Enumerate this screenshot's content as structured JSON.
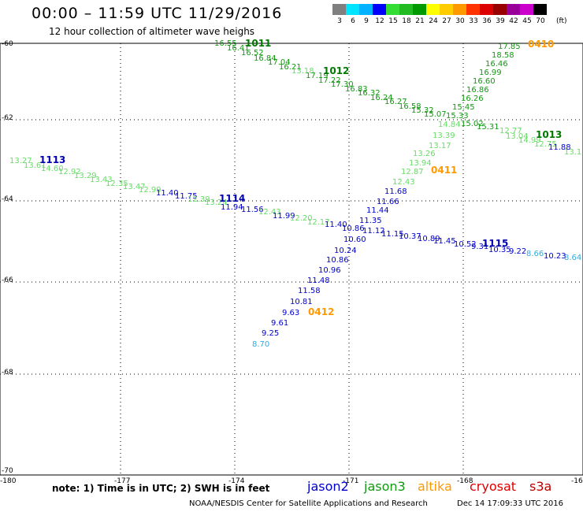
{
  "header": {
    "title": "00:00 – 11:59 UTC 11/29/2016",
    "subtitle": "12 hour collection of altimeter wave heighs"
  },
  "color_scale": {
    "colors": [
      "#7f7f7f",
      "#00e5ff",
      "#00b2ff",
      "#0000ff",
      "#33dd33",
      "#22bb22",
      "#009900",
      "#ffff00",
      "#ffcc00",
      "#ff9900",
      "#ff3300",
      "#dd0000",
      "#990000",
      "#990099",
      "#cc00cc",
      "#000000"
    ],
    "labels": [
      "3",
      "6",
      "9",
      "12",
      "15",
      "18",
      "21",
      "24",
      "27",
      "30",
      "33",
      "36",
      "39",
      "42",
      "45",
      "70"
    ],
    "unit": "(ft)"
  },
  "axes": {
    "y_labels": [
      "-60",
      "-62",
      "-64",
      "-66",
      "-68",
      "-70"
    ],
    "x_labels": [
      "-180",
      "-177",
      "-174",
      "-171",
      "-168",
      "-16"
    ]
  },
  "tracks": [
    {
      "id": "1011",
      "color": "#119911",
      "points": [
        [
          "16.55",
          272,
          58
        ],
        [
          "16.41",
          288,
          64
        ],
        [
          "16.52",
          306,
          70
        ],
        [
          "16.84",
          322,
          77
        ],
        [
          "17.04",
          340,
          82
        ],
        [
          "16.21",
          354,
          88
        ],
        [
          "13.18",
          370,
          93
        ],
        [
          "17.19",
          388,
          99
        ],
        [
          "17.22",
          404,
          105
        ],
        [
          "17.30",
          420,
          110
        ],
        [
          "16.83",
          438,
          116
        ],
        [
          "16.32",
          454,
          121
        ],
        [
          "16.24",
          470,
          127
        ],
        [
          "16.27",
          488,
          132
        ],
        [
          "16.58",
          506,
          138
        ],
        [
          "15.32",
          522,
          143
        ],
        [
          "15.07",
          538,
          148
        ],
        [
          "15.02",
          585,
          160
        ]
      ],
      "labels": [
        [
          "1011",
          311,
          59
        ],
        [
          "1012",
          410,
          94
        ]
      ]
    },
    {
      "id": "0410",
      "color": "#119911",
      "points": [
        [
          "17.85",
          632,
          62
        ],
        [
          "18.58",
          624,
          73
        ],
        [
          "16.46",
          616,
          84
        ],
        [
          "16.99",
          608,
          95
        ],
        [
          "16.60",
          600,
          106
        ],
        [
          "16.86",
          592,
          117
        ],
        [
          "16.26",
          585,
          128
        ],
        [
          "15.45",
          574,
          139
        ],
        [
          "15.33",
          566,
          150
        ],
        [
          "14.84",
          556,
          161
        ],
        [
          "13.39",
          549,
          175
        ],
        [
          "13.17",
          544,
          188
        ],
        [
          "13.94",
          519,
          210
        ],
        [
          "13.26",
          524,
          198
        ],
        [
          "12.87",
          509,
          221
        ],
        [
          "12.43",
          498,
          234
        ]
      ],
      "labels": [
        [
          "0410",
          670,
          60
        ],
        [
          "0411",
          547,
          220
        ]
      ]
    },
    {
      "id": "1013",
      "color": "#44cc44",
      "points": [
        [
          "15.31",
          605,
          164
        ],
        [
          "12.77",
          634,
          169
        ],
        [
          "13.04",
          642,
          176
        ],
        [
          "14.99",
          658,
          181
        ],
        [
          "12.75",
          678,
          186
        ],
        [
          "13.1",
          716,
          196
        ]
      ],
      "labels": [
        [
          "1013",
          680,
          175
        ]
      ]
    },
    {
      "id": "1113",
      "color": "#44cc44",
      "points": [
        [
          "13.27",
          12,
          207
        ],
        [
          "13.61",
          30,
          213
        ],
        [
          "14.60",
          52,
          217
        ],
        [
          "12.92",
          74,
          221
        ],
        [
          "13.29",
          94,
          226
        ],
        [
          "13.43",
          114,
          231
        ],
        [
          "12.35",
          134,
          236
        ],
        [
          "13.47",
          156,
          240
        ],
        [
          "12.99",
          176,
          244
        ]
      ],
      "labels": [
        [
          "1113",
          50,
          207
        ]
      ]
    },
    {
      "id": "1114",
      "color": "#0000cc",
      "points": [
        [
          "11.40",
          198,
          248
        ],
        [
          "11.75",
          222,
          252
        ],
        [
          "12.39",
          238,
          256
        ],
        [
          "13.24",
          260,
          260
        ],
        [
          "11.94",
          280,
          266
        ],
        [
          "11.56",
          306,
          269
        ],
        [
          "12.43",
          328,
          272
        ],
        [
          "11.99",
          346,
          277
        ],
        [
          "12.20",
          368,
          280
        ],
        [
          "12.17",
          390,
          285
        ],
        [
          "11.40",
          412,
          288
        ],
        [
          "10.86",
          434,
          293
        ],
        [
          "11.12",
          460,
          296
        ],
        [
          "11.15",
          484,
          300
        ],
        [
          "10.37",
          506,
          303
        ],
        [
          "10.89",
          530,
          306
        ],
        [
          "11.45",
          550,
          309
        ],
        [
          "10.52",
          576,
          313
        ],
        [
          "9.31",
          598,
          316
        ],
        [
          "10.35",
          620,
          320
        ],
        [
          "9.22",
          646,
          322
        ],
        [
          "8.66",
          668,
          325
        ],
        [
          "10.23",
          690,
          328
        ],
        [
          "8.64",
          716,
          330
        ]
      ],
      "labels": [
        [
          "1114",
          278,
          256
        ],
        [
          "1115",
          612,
          313
        ]
      ]
    },
    {
      "id": "0412",
      "color": "#0000cc",
      "points": [
        [
          "11.88",
          696,
          190
        ],
        [
          "11.68",
          488,
          246
        ],
        [
          "11.66",
          478,
          259
        ],
        [
          "11.44",
          465,
          270
        ],
        [
          "11.35",
          456,
          283
        ],
        [
          "10.60",
          436,
          307
        ],
        [
          "10.24",
          424,
          321
        ],
        [
          "10.86",
          414,
          333
        ],
        [
          "10.96",
          404,
          346
        ],
        [
          "11.48",
          390,
          359
        ],
        [
          "11.58",
          378,
          372
        ],
        [
          "10.81",
          368,
          386
        ],
        [
          "9.63",
          358,
          400
        ],
        [
          "9.61",
          344,
          413
        ],
        [
          "9.25",
          332,
          426
        ],
        [
          "8.70",
          320,
          440
        ]
      ],
      "labels": [
        [
          "0412",
          391,
          400
        ]
      ]
    }
  ],
  "note": "note: 1) Time is in UTC; 2) SWH is in feet",
  "legend": [
    {
      "name": "jason2",
      "color": "#0000cc"
    },
    {
      "name": "jason3",
      "color": "#119911"
    },
    {
      "name": "altika",
      "color": "#ff9900"
    },
    {
      "name": "cryosat",
      "color": "#dd0000"
    },
    {
      "name": "s3a",
      "color": "#bb0000"
    }
  ],
  "footer": {
    "left": "NOAA/NESDIS Center for Satellite Applications and Research",
    "right": "Dec 14 17:09:33 UTC 2016"
  }
}
